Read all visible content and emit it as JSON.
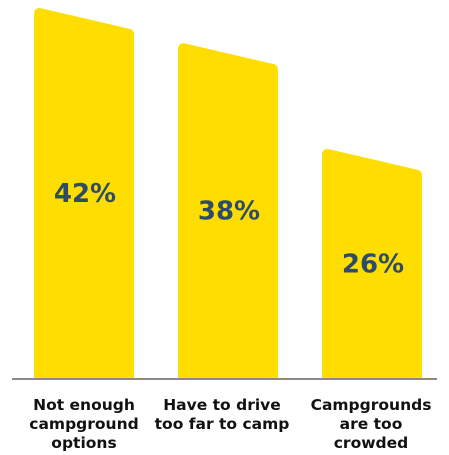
{
  "chart_data": {
    "type": "bar",
    "categories": [
      [
        "Not enough",
        "campground",
        "options"
      ],
      [
        "Have to drive",
        "too far to camp"
      ],
      [
        "Campgrounds",
        "are too",
        "crowded"
      ]
    ],
    "values": [
      42,
      38,
      26
    ],
    "value_labels": [
      "42%",
      "38%",
      "26%"
    ],
    "title": "",
    "xlabel": "",
    "ylabel": "",
    "ylim": [
      0,
      42
    ],
    "grid": false,
    "legend": "none",
    "colors": {
      "bar": "#fedd00",
      "value_text": "#2f4b6a",
      "axis": "#8a8a8a",
      "category_text": "#111111"
    }
  }
}
